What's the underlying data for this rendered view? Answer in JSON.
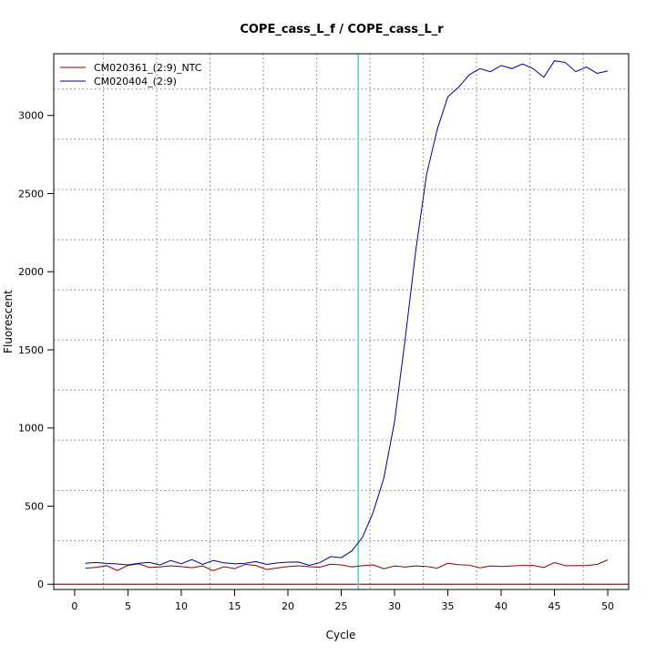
{
  "chart_data": {
    "type": "line",
    "title": "COPE_cass_L_f / COPE_cass_L_r",
    "xlabel": "Cycle",
    "ylabel": "Fluorescent",
    "xlim": [
      -1.96,
      51.96
    ],
    "ylim": [
      -33.6,
      3395
    ],
    "x_ticks": [
      0,
      5,
      10,
      15,
      20,
      25,
      30,
      35,
      40,
      45,
      50
    ],
    "y_ticks": [
      0,
      500,
      1000,
      1500,
      2000,
      2500,
      3000
    ],
    "x_grid": [
      2.7,
      7.7,
      12.7,
      17.7,
      22.7,
      27.7,
      32.7,
      37.7,
      42.7,
      47.7
    ],
    "y_grid": [
      -33.6,
      279,
      600,
      922,
      1243,
      1563,
      1884,
      2205,
      2526,
      2848,
      3169
    ],
    "grid": true,
    "legend_position": "top-left",
    "threshold_line": {
      "y": 0,
      "color": "#cc0000"
    },
    "cycle_line": {
      "x": 26.6,
      "color": "#40e0e0"
    },
    "series": [
      {
        "name": "CM020361_(2:9)_NTC",
        "color": "#8b0000",
        "x": [
          1,
          2,
          3,
          4,
          5,
          6,
          7,
          8,
          9,
          10,
          11,
          12,
          13,
          14,
          15,
          16,
          17,
          18,
          19,
          20,
          21,
          22,
          23,
          24,
          25,
          26,
          27,
          28,
          29,
          30,
          31,
          32,
          33,
          34,
          35,
          36,
          37,
          38,
          39,
          40,
          41,
          42,
          43,
          44,
          45,
          46,
          47,
          48,
          49,
          50
        ],
        "values": [
          103,
          108,
          119,
          88,
          121,
          130,
          108,
          111,
          118,
          113,
          106,
          117,
          87,
          112,
          100,
          127,
          120,
          94,
          104,
          113,
          118,
          112,
          109,
          128,
          124,
          111,
          119,
          124,
          99,
          117,
          110,
          117,
          114,
          103,
          134,
          125,
          122,
          105,
          117,
          114,
          117,
          120,
          120,
          107,
          139,
          119,
          119,
          120,
          127,
          156
        ]
      },
      {
        "name": "CM020404_(2:9)",
        "color": "#00008b",
        "x": [
          1,
          2,
          3,
          4,
          5,
          6,
          7,
          8,
          9,
          10,
          11,
          12,
          13,
          14,
          15,
          16,
          17,
          18,
          19,
          20,
          21,
          22,
          23,
          24,
          25,
          26,
          27,
          28,
          29,
          30,
          31,
          32,
          33,
          34,
          35,
          36,
          37,
          38,
          39,
          40,
          41,
          42,
          43,
          44,
          45,
          46,
          47,
          48,
          49,
          50
        ],
        "values": [
          134,
          139,
          133,
          130,
          124,
          134,
          140,
          123,
          152,
          131,
          158,
          127,
          152,
          137,
          131,
          134,
          145,
          127,
          136,
          141,
          142,
          121,
          138,
          177,
          170,
          213,
          301,
          461,
          680,
          1040,
          1570,
          2140,
          2620,
          2910,
          3120,
          3180,
          3260,
          3300,
          3280,
          3320,
          3300,
          3330,
          3300,
          3245,
          3350,
          3340,
          3280,
          3310,
          3270,
          3285
        ]
      }
    ]
  }
}
